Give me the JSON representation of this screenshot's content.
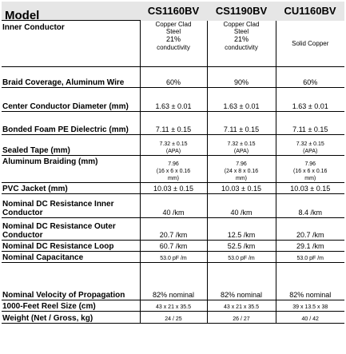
{
  "header": {
    "label": "Model",
    "models": [
      "CS1160BV",
      "CS1190BV",
      "CU1160BV"
    ]
  },
  "rows": [
    {
      "label": "Inner Conductor",
      "values": [
        [
          "Copper Clad",
          "Steel",
          "21%",
          "conductivity"
        ],
        [
          "Copper Clad",
          "Steel",
          "21%",
          "conductivity"
        ],
        [
          "Solid Copper"
        ]
      ]
    },
    {
      "label": "Braid Coverage, Aluminum Wire",
      "values": [
        [
          "60%"
        ],
        [
          "90%"
        ],
        [
          "60%"
        ]
      ]
    },
    {
      "label": "Center Conductor Diameter (mm)",
      "values": [
        [
          "1.63 ± 0.01"
        ],
        [
          "1.63 ± 0.01"
        ],
        [
          "1.63 ± 0.01"
        ]
      ]
    },
    {
      "label": "Bonded Foam PE Dielectric (mm)",
      "values": [
        [
          "7.11 ± 0.15"
        ],
        [
          "7.11 ± 0.15"
        ],
        [
          "7.11 ± 0.15"
        ]
      ]
    },
    {
      "label": "Sealed Tape (mm)",
      "values": [
        [
          "7.32 ± 0.15",
          "(APA)"
        ],
        [
          "7.32 ± 0.15",
          "(APA)"
        ],
        [
          "7.32 ± 0.15",
          "(APA)"
        ]
      ]
    },
    {
      "label": "Aluminum Braiding (mm)",
      "values": [
        [
          "7.96",
          "(16 x 6 x 0.16",
          "mm)"
        ],
        [
          "7.96",
          "(24 x 8 x 0.16",
          "mm)"
        ],
        [
          "7.96",
          "(16 x 6 x 0.16",
          "mm)"
        ]
      ]
    },
    {
      "label": "PVC Jacket (mm)",
      "values": [
        [
          "10.03 ± 0.15"
        ],
        [
          "10.03 ± 0.15"
        ],
        [
          "10.03 ± 0.15"
        ]
      ]
    },
    {
      "label": "Nominal DC Resistance Inner Conductor",
      "values": [
        [
          "40 /km"
        ],
        [
          "40 /km"
        ],
        [
          "8.4 /km"
        ]
      ]
    },
    {
      "label": "Nominal DC Resistance Outer Conductor",
      "values": [
        [
          "20.7 /km"
        ],
        [
          "12.5 /km"
        ],
        [
          "20.7 /km"
        ]
      ]
    },
    {
      "label": "Nominal DC Resistance Loop",
      "values": [
        [
          "60.7 /km"
        ],
        [
          "52.5 /km"
        ],
        [
          "29.1 /km"
        ]
      ]
    },
    {
      "label": "Nominal Capacitance",
      "values": [
        [
          "53.0 pF /m"
        ],
        [
          "53.0 pF /m"
        ],
        [
          "53.0 pF /m"
        ]
      ]
    },
    {
      "label": "Nominal Velocity of Propagation",
      "values": [
        [
          "82% nominal"
        ],
        [
          "82% nominal"
        ],
        [
          "82% nominal"
        ]
      ]
    },
    {
      "label": "1000-Feet Reel Size (cm)",
      "values": [
        [
          "43 x 21 x 35.5"
        ],
        [
          "43 x 21 x 35.5"
        ],
        [
          "39 x 13.5 x 38"
        ]
      ]
    },
    {
      "label": "Weight (Net / Gross, kg)",
      "values": [
        [
          "24 / 25"
        ],
        [
          "26 / 27"
        ],
        [
          "40 / 42"
        ]
      ]
    }
  ]
}
